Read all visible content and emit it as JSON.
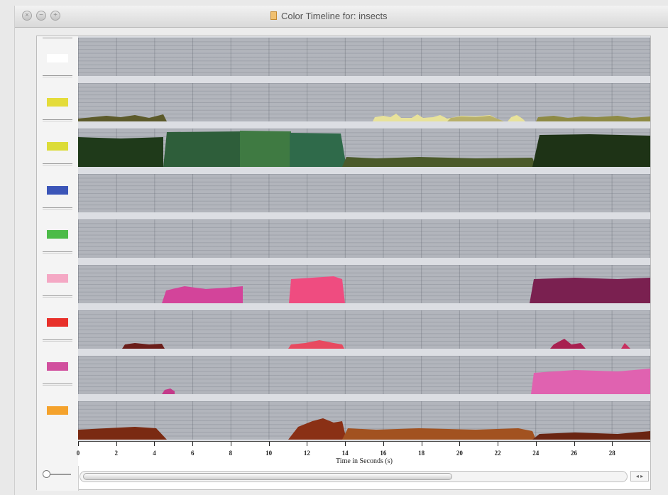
{
  "window": {
    "title": "Color Timeline for: insects",
    "buttons": [
      "close",
      "minimize",
      "zoom"
    ]
  },
  "tracks": [
    {
      "name": "white",
      "swatch": "#ffffff"
    },
    {
      "name": "yellow-1",
      "swatch": "#e4dc3a"
    },
    {
      "name": "yellow-2",
      "swatch": "#dcdc38"
    },
    {
      "name": "blue",
      "swatch": "#3b55b8"
    },
    {
      "name": "green",
      "swatch": "#4cbb48"
    },
    {
      "name": "pink",
      "swatch": "#f4a8c4"
    },
    {
      "name": "red",
      "swatch": "#e8302a"
    },
    {
      "name": "magenta",
      "swatch": "#d1509e"
    },
    {
      "name": "orange",
      "swatch": "#f4a22c"
    }
  ],
  "axis": {
    "title": "Time in Seconds (s)",
    "ticks": [
      "0",
      "2",
      "4",
      "6",
      "8",
      "10",
      "12",
      "14",
      "16",
      "18",
      "20",
      "22",
      "24",
      "26",
      "28"
    ],
    "tick_values": [
      0,
      2,
      4,
      6,
      8,
      10,
      12,
      14,
      16,
      18,
      20,
      22,
      24,
      26,
      28
    ],
    "max_seconds": 30
  },
  "controls": {
    "zoom_slider": "zoom-level",
    "scroll_arrows": "◂ ▸"
  },
  "colors": {
    "grid_background": "#b2b5bc",
    "track_separator": "#dcdee3"
  }
}
